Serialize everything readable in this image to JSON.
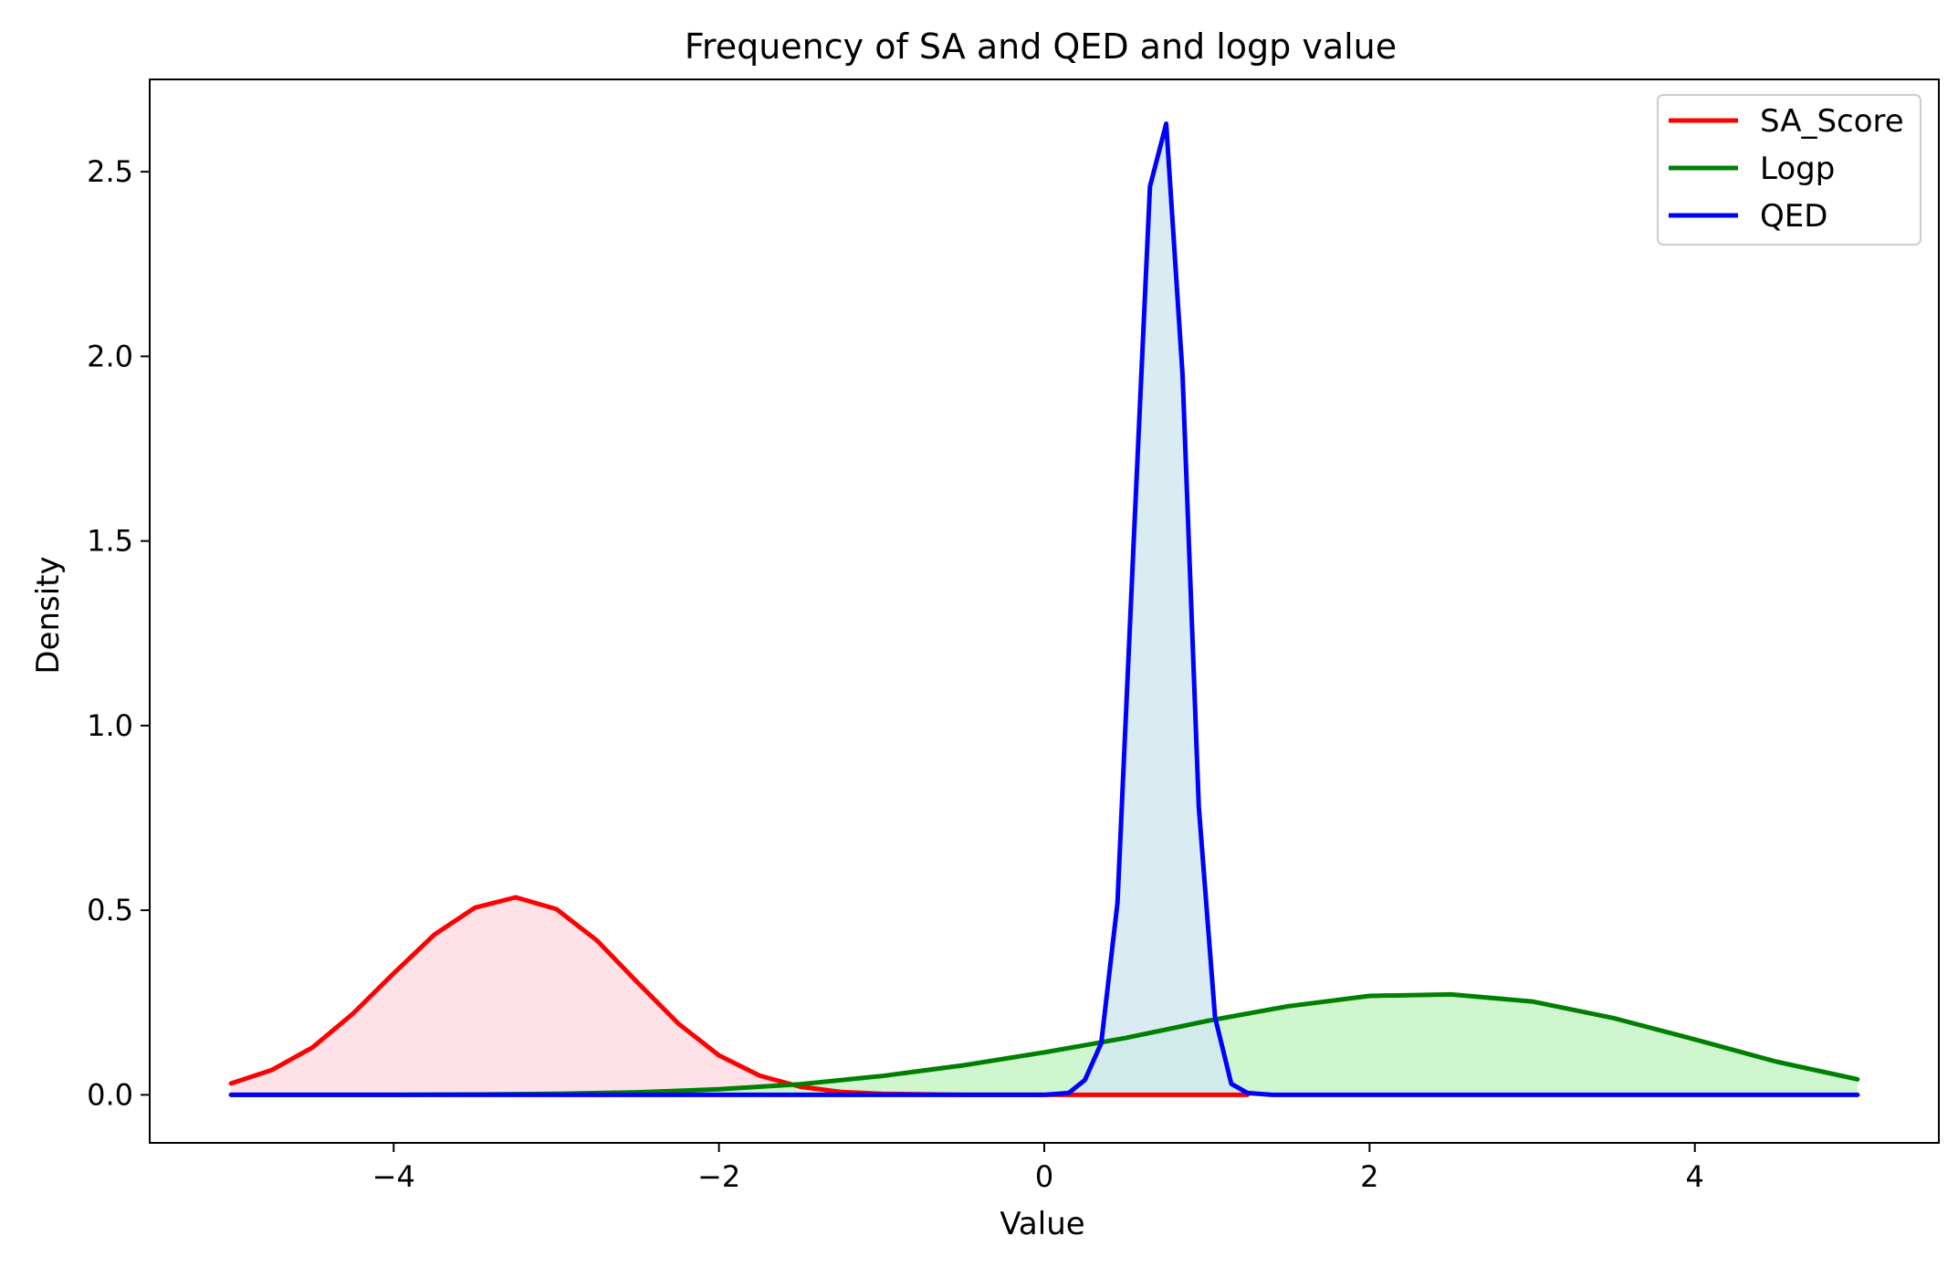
{
  "chart_data": {
    "type": "area",
    "title": "Frequency of SA and QED and logp value",
    "xlabel": "Value",
    "ylabel": "Density",
    "xlim": [
      -5.5,
      5.5
    ],
    "ylim": [
      -0.13,
      2.75
    ],
    "x_ticks": [
      -4,
      -2,
      0,
      2,
      4
    ],
    "x_tick_labels": [
      "−4",
      "−2",
      "0",
      "2",
      "4"
    ],
    "y_ticks": [
      0.0,
      0.5,
      1.0,
      1.5,
      2.0,
      2.5
    ],
    "y_tick_labels": [
      "0.0",
      "0.5",
      "1.0",
      "1.5",
      "2.0",
      "2.5"
    ],
    "grid": false,
    "legend_position": "top-right",
    "series": [
      {
        "name": "SA_Score",
        "color": "#ff0000",
        "fill": "#ffdde3",
        "x": [
          -5.0,
          -4.75,
          -4.5,
          -4.25,
          -4.0,
          -3.75,
          -3.5,
          -3.25,
          -3.0,
          -2.75,
          -2.5,
          -2.25,
          -2.0,
          -1.75,
          -1.5,
          -1.25,
          -1.0,
          -0.5,
          0.0,
          0.5,
          1.0,
          1.25
        ],
        "values": [
          0.031,
          0.067,
          0.128,
          0.22,
          0.329,
          0.434,
          0.507,
          0.535,
          0.503,
          0.418,
          0.304,
          0.193,
          0.107,
          0.052,
          0.022,
          0.008,
          0.003,
          0.0,
          0.0,
          0.0,
          0.0,
          0.0
        ]
      },
      {
        "name": "Logp",
        "color": "#008000",
        "fill": "#c8f5c8",
        "x": [
          -5.0,
          -4.5,
          -4.0,
          -3.5,
          -3.0,
          -2.5,
          -2.0,
          -1.5,
          -1.0,
          -0.5,
          0.0,
          0.5,
          1.0,
          1.5,
          2.0,
          2.5,
          3.0,
          3.5,
          4.0,
          4.5,
          5.0
        ],
        "values": [
          0.0,
          0.0,
          0.0,
          0.001,
          0.003,
          0.007,
          0.015,
          0.029,
          0.051,
          0.08,
          0.115,
          0.154,
          0.2,
          0.24,
          0.268,
          0.272,
          0.253,
          0.208,
          0.15,
          0.09,
          0.042
        ]
      },
      {
        "name": "QED",
        "color": "#0000ff",
        "fill": "#d1e9f0",
        "x": [
          -5.0,
          0.0,
          0.15,
          0.25,
          0.35,
          0.45,
          0.55,
          0.65,
          0.75,
          0.85,
          0.95,
          1.05,
          1.15,
          1.25,
          1.4,
          5.0
        ],
        "values": [
          0.0,
          0.0,
          0.005,
          0.04,
          0.14,
          0.52,
          1.5,
          2.46,
          2.63,
          1.95,
          0.78,
          0.21,
          0.03,
          0.005,
          0.0,
          0.0
        ]
      }
    ]
  }
}
